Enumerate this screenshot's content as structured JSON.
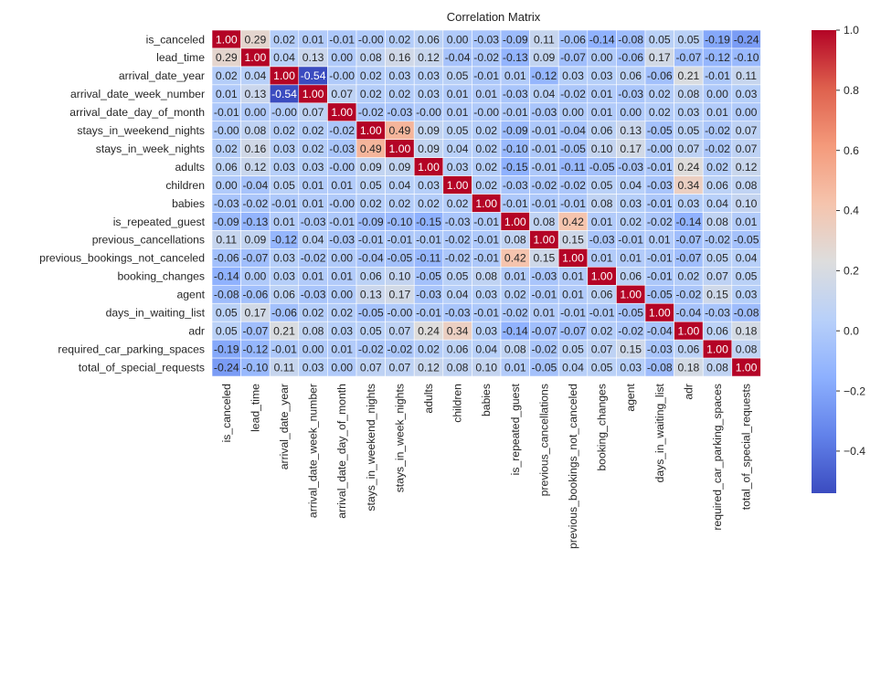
{
  "chart_data": {
    "type": "heatmap",
    "title": "Correlation Matrix",
    "labels": [
      "is_canceled",
      "lead_time",
      "arrival_date_year",
      "arrival_date_week_number",
      "arrival_date_day_of_month",
      "stays_in_weekend_nights",
      "stays_in_week_nights",
      "adults",
      "children",
      "babies",
      "is_repeated_guest",
      "previous_cancellations",
      "previous_bookings_not_canceled",
      "booking_changes",
      "agent",
      "days_in_waiting_list",
      "adr",
      "required_car_parking_spaces",
      "total_of_special_requests"
    ],
    "matrix": [
      [
        1.0,
        0.29,
        0.02,
        0.01,
        -0.01,
        -0.0,
        0.02,
        0.06,
        0.0,
        -0.03,
        -0.09,
        0.11,
        -0.06,
        -0.14,
        -0.08,
        0.05,
        0.05,
        -0.19,
        -0.24
      ],
      [
        0.29,
        1.0,
        0.04,
        0.13,
        0.0,
        0.08,
        0.16,
        0.12,
        -0.04,
        -0.02,
        -0.13,
        0.09,
        -0.07,
        0.0,
        -0.06,
        0.17,
        -0.07,
        -0.12,
        -0.1
      ],
      [
        0.02,
        0.04,
        1.0,
        -0.54,
        -0.0,
        0.02,
        0.03,
        0.03,
        0.05,
        -0.01,
        0.01,
        -0.12,
        0.03,
        0.03,
        0.06,
        -0.06,
        0.21,
        -0.01,
        0.11
      ],
      [
        0.01,
        0.13,
        -0.54,
        1.0,
        0.07,
        0.02,
        0.02,
        0.03,
        0.01,
        0.01,
        -0.03,
        0.04,
        -0.02,
        0.01,
        -0.03,
        0.02,
        0.08,
        0.0,
        0.03
      ],
      [
        -0.01,
        0.0,
        -0.0,
        0.07,
        1.0,
        -0.02,
        -0.03,
        -0.0,
        0.01,
        -0.0,
        -0.01,
        -0.03,
        0.0,
        0.01,
        0.0,
        0.02,
        0.03,
        0.01,
        0.0
      ],
      [
        -0.0,
        0.08,
        0.02,
        0.02,
        -0.02,
        1.0,
        0.49,
        0.09,
        0.05,
        0.02,
        -0.09,
        -0.01,
        -0.04,
        0.06,
        0.13,
        -0.05,
        0.05,
        -0.02,
        0.07
      ],
      [
        0.02,
        0.16,
        0.03,
        0.02,
        -0.03,
        0.49,
        1.0,
        0.09,
        0.04,
        0.02,
        -0.1,
        -0.01,
        -0.05,
        0.1,
        0.17,
        -0.0,
        0.07,
        -0.02,
        0.07
      ],
      [
        0.06,
        0.12,
        0.03,
        0.03,
        -0.0,
        0.09,
        0.09,
        1.0,
        0.03,
        0.02,
        -0.15,
        -0.01,
        -0.11,
        -0.05,
        -0.03,
        -0.01,
        0.24,
        0.02,
        0.12
      ],
      [
        0.0,
        -0.04,
        0.05,
        0.01,
        0.01,
        0.05,
        0.04,
        0.03,
        1.0,
        0.02,
        -0.03,
        -0.02,
        -0.02,
        0.05,
        0.04,
        -0.03,
        0.34,
        0.06,
        0.08
      ],
      [
        -0.03,
        -0.02,
        -0.01,
        0.01,
        -0.0,
        0.02,
        0.02,
        0.02,
        0.02,
        1.0,
        -0.01,
        -0.01,
        -0.01,
        0.08,
        0.03,
        -0.01,
        0.03,
        0.04,
        0.1
      ],
      [
        -0.09,
        -0.13,
        0.01,
        -0.03,
        -0.01,
        -0.09,
        -0.1,
        -0.15,
        -0.03,
        -0.01,
        1.0,
        0.08,
        0.42,
        0.01,
        0.02,
        -0.02,
        -0.14,
        0.08,
        0.01
      ],
      [
        0.11,
        0.09,
        -0.12,
        0.04,
        -0.03,
        -0.01,
        -0.01,
        -0.01,
        -0.02,
        -0.01,
        0.08,
        1.0,
        0.15,
        -0.03,
        -0.01,
        0.01,
        -0.07,
        -0.02,
        -0.05
      ],
      [
        -0.06,
        -0.07,
        0.03,
        -0.02,
        0.0,
        -0.04,
        -0.05,
        -0.11,
        -0.02,
        -0.01,
        0.42,
        0.15,
        1.0,
        0.01,
        0.01,
        -0.01,
        -0.07,
        0.05,
        0.04
      ],
      [
        -0.14,
        0.0,
        0.03,
        0.01,
        0.01,
        0.06,
        0.1,
        -0.05,
        0.05,
        0.08,
        0.01,
        -0.03,
        0.01,
        1.0,
        0.06,
        -0.01,
        0.02,
        0.07,
        0.05
      ],
      [
        -0.08,
        -0.06,
        0.06,
        -0.03,
        0.0,
        0.13,
        0.17,
        -0.03,
        0.04,
        0.03,
        0.02,
        -0.01,
        0.01,
        0.06,
        1.0,
        -0.05,
        -0.02,
        0.15,
        0.03
      ],
      [
        0.05,
        0.17,
        -0.06,
        0.02,
        0.02,
        -0.05,
        -0.0,
        -0.01,
        -0.03,
        -0.01,
        -0.02,
        0.01,
        -0.01,
        -0.01,
        -0.05,
        1.0,
        -0.04,
        -0.03,
        -0.08
      ],
      [
        0.05,
        -0.07,
        0.21,
        0.08,
        0.03,
        0.05,
        0.07,
        0.24,
        0.34,
        0.03,
        -0.14,
        -0.07,
        -0.07,
        0.02,
        -0.02,
        -0.04,
        1.0,
        0.06,
        0.18
      ],
      [
        -0.19,
        -0.12,
        -0.01,
        0.0,
        0.01,
        -0.02,
        -0.02,
        0.02,
        0.06,
        0.04,
        0.08,
        -0.02,
        0.05,
        0.07,
        0.15,
        -0.03,
        0.06,
        1.0,
        0.08
      ],
      [
        -0.24,
        -0.1,
        0.11,
        0.03,
        0.0,
        0.07,
        0.07,
        0.12,
        0.08,
        0.1,
        0.01,
        -0.05,
        0.04,
        0.05,
        0.03,
        -0.08,
        0.18,
        0.08,
        1.0
      ]
    ],
    "colormap": "coolwarm",
    "vmin": -0.54,
    "vmax": 1.0,
    "colorbar_ticks": [
      1.0,
      0.8,
      0.6,
      0.4,
      0.2,
      0.0,
      -0.2,
      -0.4
    ],
    "colorbar_tick_labels": [
      "1.0",
      "0.8",
      "0.6",
      "0.4",
      "0.2",
      "0.0",
      "−0.2",
      "−0.4"
    ],
    "annotated": true,
    "value_format": "0.00"
  }
}
